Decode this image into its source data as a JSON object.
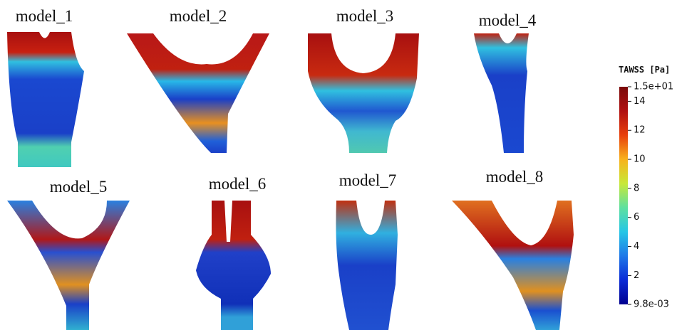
{
  "panels": [
    {
      "label": "model_1"
    },
    {
      "label": "model_2"
    },
    {
      "label": "model_3"
    },
    {
      "label": "model_4"
    },
    {
      "label": "model_5"
    },
    {
      "label": "model_6"
    },
    {
      "label": "model_7"
    },
    {
      "label": "model_8"
    }
  ],
  "colorbar": {
    "title": "TAWSS [Pa]",
    "range": [
      0.0098,
      15
    ],
    "ticks": [
      {
        "value": 15,
        "label": "1.5e+01"
      },
      14,
      12,
      10,
      8,
      6,
      4,
      2,
      {
        "value": 0.0098,
        "label": "9.8e-03"
      }
    ],
    "colors": [
      "#00008f",
      "#0a2ad6",
      "#1f78e8",
      "#25c6e6",
      "#5ee0a0",
      "#c8e838",
      "#f8b21c",
      "#e8400c",
      "#b01010",
      "#7a0a0a"
    ]
  }
}
